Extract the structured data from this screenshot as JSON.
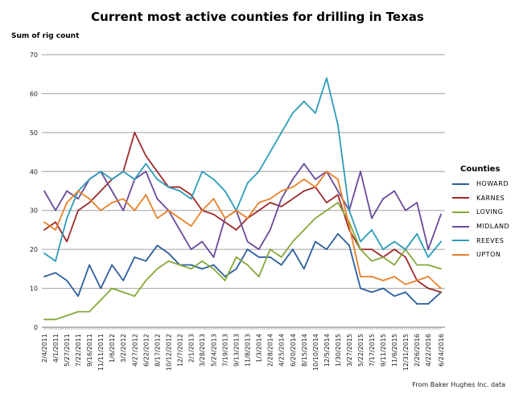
{
  "chart_data": {
    "type": "line",
    "title": "Current most active counties for drilling in Texas",
    "ylabel": "Sum of rig count",
    "xlabel": "",
    "ylim": [
      0,
      70
    ],
    "yticks": [
      0,
      10,
      20,
      30,
      40,
      50,
      60,
      70
    ],
    "grid": true,
    "legend_title": "Counties",
    "legend_position": "right",
    "source_note": "From Baker Hughes Inc. data",
    "x": [
      "2/4/2011",
      "4/1/2011",
      "5/27/2011",
      "7/22/2011",
      "9/16/2011",
      "11/11/2011",
      "1/6/2012",
      "3/2/2012",
      "4/27/2012",
      "6/22/2012",
      "8/17/2012",
      "10/12/2012",
      "12/7/2012",
      "2/1/2013",
      "3/28/2013",
      "5/24/2013",
      "7/19/2013",
      "9/13/2013",
      "11/8/2013",
      "1/3/2014",
      "2/28/2014",
      "4/25/2014",
      "6/20/2014",
      "8/15/2014",
      "10/10/2014",
      "12/5/2014",
      "1/30/2015",
      "3/27/2015",
      "5/22/2015",
      "7/17/2015",
      "9/11/2015",
      "11/6/2015",
      "12/31/2015",
      "2/26/2016",
      "4/22/2016",
      "6/24/2016"
    ],
    "series": [
      {
        "name": "HOWARD",
        "color": "#2c5f9e",
        "values": [
          13,
          14,
          12,
          8,
          16,
          10,
          16,
          12,
          18,
          17,
          21,
          19,
          16,
          16,
          15,
          16,
          13,
          15,
          20,
          18,
          18,
          16,
          20,
          15,
          22,
          20,
          24,
          21,
          10,
          9,
          10,
          8,
          9,
          6,
          6,
          9
        ]
      },
      {
        "name": "KARNES",
        "color": "#9e2a2b",
        "values": [
          25,
          27,
          22,
          30,
          32,
          35,
          38,
          40,
          50,
          44,
          40,
          36,
          36,
          34,
          30,
          29,
          27,
          25,
          28,
          30,
          32,
          31,
          33,
          35,
          36,
          32,
          34,
          25,
          20,
          20,
          18,
          20,
          18,
          12,
          10,
          9
        ]
      },
      {
        "name": "LOVING",
        "color": "#86a83a",
        "values": [
          2,
          2,
          3,
          4,
          4,
          7,
          10,
          9,
          8,
          12,
          15,
          17,
          16,
          15,
          17,
          15,
          12,
          18,
          16,
          13,
          20,
          18,
          22,
          25,
          28,
          30,
          32,
          27,
          20,
          17,
          18,
          16,
          20,
          16,
          16,
          15
        ]
      },
      {
        "name": "MIDLAND",
        "color": "#6a4a9a",
        "values": [
          35,
          30,
          35,
          33,
          38,
          40,
          35,
          30,
          38,
          40,
          33,
          30,
          25,
          20,
          22,
          18,
          28,
          30,
          22,
          20,
          25,
          33,
          38,
          42,
          38,
          40,
          35,
          30,
          40,
          28,
          33,
          35,
          30,
          32,
          20,
          29
        ]
      },
      {
        "name": "REEVES",
        "color": "#2c9cb8",
        "values": [
          19,
          17,
          28,
          35,
          38,
          40,
          38,
          40,
          38,
          42,
          38,
          36,
          35,
          33,
          40,
          38,
          35,
          30,
          37,
          40,
          45,
          50,
          55,
          58,
          55,
          64,
          52,
          30,
          22,
          25,
          20,
          22,
          20,
          24,
          18,
          22
        ]
      },
      {
        "name": "UPTON",
        "color": "#e8812a",
        "values": [
          27,
          25,
          32,
          35,
          33,
          30,
          32,
          33,
          30,
          34,
          28,
          30,
          28,
          26,
          30,
          33,
          28,
          30,
          28,
          32,
          33,
          35,
          36,
          38,
          36,
          40,
          38,
          26,
          13,
          13,
          12,
          13,
          11,
          12,
          13,
          10
        ]
      }
    ]
  }
}
